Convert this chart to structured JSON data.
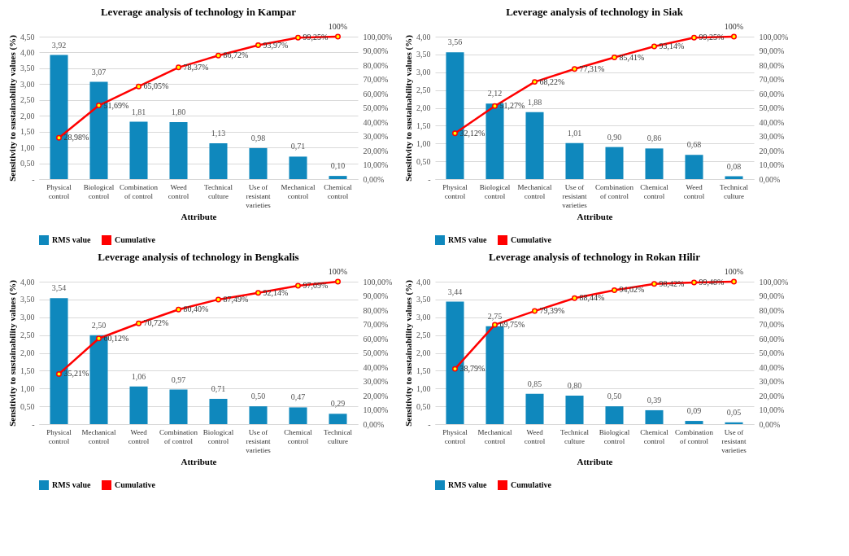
{
  "chart_data": [
    {
      "type": "bar",
      "title": "Leverage analysis of technology in Kampar",
      "xlabel": "Attribute",
      "ylabel": "Sensitivity to sustainability values (%)",
      "categories": [
        "Physical control",
        "Biological control",
        "Combination of control",
        "Weed control",
        "Technical culture",
        "Use of resistant varieties",
        "Mechanical control",
        "Chemical control"
      ],
      "series": [
        {
          "name": "RMS value",
          "color": "#0f88bd",
          "values": [
            3.92,
            3.07,
            1.81,
            1.8,
            1.13,
            0.98,
            0.71,
            0.1
          ],
          "value_labels": [
            "3,92",
            "3,07",
            "1,81",
            "1,80",
            "1,13",
            "0,98",
            "0,71",
            "0,10"
          ]
        },
        {
          "name": "Cumulative",
          "type": "line",
          "axis": "y2",
          "color": "#ff0000",
          "values": [
            28.98,
            51.69,
            65.05,
            78.37,
            86.72,
            93.97,
            99.25,
            100
          ],
          "value_labels": [
            "28,98%",
            "51,69%",
            "65,05%",
            "78,37%",
            "86,72%",
            "93,97%",
            "99,25%",
            "100%"
          ]
        }
      ],
      "ylim": [
        0,
        4.5
      ],
      "yticks": [
        {
          "value": 0,
          "label": "-"
        },
        {
          "value": 0.5,
          "label": "0,50"
        },
        {
          "value": 1,
          "label": "1,00"
        },
        {
          "value": 1.5,
          "label": "1,50"
        },
        {
          "value": 2,
          "label": "2,00"
        },
        {
          "value": 2.5,
          "label": "2,50"
        },
        {
          "value": 3,
          "label": "3,00"
        },
        {
          "value": 3.5,
          "label": "3,50"
        },
        {
          "value": 4,
          "label": "4,00"
        },
        {
          "value": 4.5,
          "label": "4,50"
        }
      ],
      "y2lim": [
        0,
        100
      ],
      "y2ticks": [
        {
          "value": 0,
          "label": "0,00%"
        },
        {
          "value": 10,
          "label": "10,00%"
        },
        {
          "value": 20,
          "label": "20,00%"
        },
        {
          "value": 30,
          "label": "30,00%"
        },
        {
          "value": 40,
          "label": "40,00%"
        },
        {
          "value": 50,
          "label": "50,00%"
        },
        {
          "value": 60,
          "label": "60,00%"
        },
        {
          "value": 70,
          "label": "70,00%"
        },
        {
          "value": 80,
          "label": "80,00%"
        },
        {
          "value": 90,
          "label": "90,00%"
        },
        {
          "value": 100,
          "label": "100,00%"
        }
      ],
      "grid": "y",
      "legend": "bottom",
      "marker": "circle"
    },
    {
      "type": "bar",
      "title": "Leverage analysis of technology in Siak",
      "xlabel": "Attribute",
      "ylabel": "Sensitivity to sustainability values (%)",
      "categories": [
        "Physical control",
        "Biological control",
        "Mechanical control",
        "Use of resistant varieties",
        "Combination of control",
        "Chemical control",
        "Weed control",
        "Technical culture"
      ],
      "series": [
        {
          "name": "RMS value",
          "color": "#0f88bd",
          "values": [
            3.56,
            2.12,
            1.88,
            1.01,
            0.9,
            0.86,
            0.68,
            0.08
          ],
          "value_labels": [
            "3,56",
            "2,12",
            "1,88",
            "1,01",
            "0,90",
            "0,86",
            "0,68",
            "0,08"
          ]
        },
        {
          "name": "Cumulative",
          "type": "line",
          "axis": "y2",
          "color": "#ff0000",
          "values": [
            32.12,
            51.27,
            68.22,
            77.31,
            85.41,
            93.14,
            99.25,
            100
          ],
          "value_labels": [
            "32,12%",
            "51,27%",
            "68,22%",
            "77,31%",
            "85,41%",
            "93,14%",
            "99,25%",
            "100%"
          ]
        }
      ],
      "ylim": [
        0,
        4
      ],
      "yticks": [
        {
          "value": 0,
          "label": "-"
        },
        {
          "value": 0.5,
          "label": "0,50"
        },
        {
          "value": 1,
          "label": "1,00"
        },
        {
          "value": 1.5,
          "label": "1,50"
        },
        {
          "value": 2,
          "label": "2,00"
        },
        {
          "value": 2.5,
          "label": "2,50"
        },
        {
          "value": 3,
          "label": "3,00"
        },
        {
          "value": 3.5,
          "label": "3,50"
        },
        {
          "value": 4,
          "label": "4,00"
        }
      ],
      "y2lim": [
        0,
        100
      ],
      "y2ticks": [
        {
          "value": 0,
          "label": "0,00%"
        },
        {
          "value": 10,
          "label": "10,00%"
        },
        {
          "value": 20,
          "label": "20,00%"
        },
        {
          "value": 30,
          "label": "30,00%"
        },
        {
          "value": 40,
          "label": "40,00%"
        },
        {
          "value": 50,
          "label": "50,00%"
        },
        {
          "value": 60,
          "label": "60,00%"
        },
        {
          "value": 70,
          "label": "70,00%"
        },
        {
          "value": 80,
          "label": "80,00%"
        },
        {
          "value": 90,
          "label": "90,00%"
        },
        {
          "value": 100,
          "label": "100,00%"
        }
      ],
      "grid": "y",
      "legend": "bottom",
      "marker": "circle"
    },
    {
      "type": "bar",
      "title": "Leverage analysis of technology in Bengkalis",
      "xlabel": "Attribute",
      "ylabel": "Sensitivity to sustainability values (%)",
      "categories": [
        "Physical control",
        "Mechanical control",
        "Weed control",
        "Combination of control",
        "Biological control",
        "Use of resistant varieties",
        "Chemical control",
        "Technical culture"
      ],
      "series": [
        {
          "name": "RMS value",
          "color": "#0f88bd",
          "values": [
            3.54,
            2.5,
            1.06,
            0.97,
            0.71,
            0.5,
            0.47,
            0.29
          ],
          "value_labels": [
            "3,54",
            "2,50",
            "1,06",
            "0,97",
            "0,71",
            "0,50",
            "0,47",
            "0,29"
          ]
        },
        {
          "name": "Cumulative",
          "type": "line",
          "axis": "y2",
          "color": "#ff0000",
          "values": [
            35.21,
            60.12,
            70.72,
            80.4,
            87.49,
            92.14,
            97.09,
            100
          ],
          "value_labels": [
            "35,21%",
            "60,12%",
            "70,72%",
            "80,40%",
            "87,49%",
            "92,14%",
            "97,09%",
            "100%"
          ]
        }
      ],
      "ylim": [
        0,
        4
      ],
      "yticks": [
        {
          "value": 0,
          "label": "-"
        },
        {
          "value": 0.5,
          "label": "0,50"
        },
        {
          "value": 1,
          "label": "1,00"
        },
        {
          "value": 1.5,
          "label": "1,50"
        },
        {
          "value": 2,
          "label": "2,00"
        },
        {
          "value": 2.5,
          "label": "2,50"
        },
        {
          "value": 3,
          "label": "3,00"
        },
        {
          "value": 3.5,
          "label": "3,50"
        },
        {
          "value": 4,
          "label": "4,00"
        }
      ],
      "y2lim": [
        0,
        100
      ],
      "y2ticks": [
        {
          "value": 0,
          "label": "0,00%"
        },
        {
          "value": 10,
          "label": "10,00%"
        },
        {
          "value": 20,
          "label": "20,00%"
        },
        {
          "value": 30,
          "label": "30,00%"
        },
        {
          "value": 40,
          "label": "40,00%"
        },
        {
          "value": 50,
          "label": "50,00%"
        },
        {
          "value": 60,
          "label": "60,00%"
        },
        {
          "value": 70,
          "label": "70,00%"
        },
        {
          "value": 80,
          "label": "80,00%"
        },
        {
          "value": 90,
          "label": "90,00%"
        },
        {
          "value": 100,
          "label": "100,00%"
        }
      ],
      "grid": "y",
      "legend": "bottom",
      "marker": "circle"
    },
    {
      "type": "bar",
      "title": "Leverage analysis of technology in  Rokan Hilir",
      "xlabel": "Attribute",
      "ylabel": "Sensitivity to sustainability values (%)",
      "categories": [
        "Physical control",
        "Mechanical control",
        "Weed control",
        "Technical culture",
        "Biological control",
        "Chemical control",
        "Combination of control",
        "Use of resistant varieties"
      ],
      "series": [
        {
          "name": "RMS value",
          "color": "#0f88bd",
          "values": [
            3.44,
            2.75,
            0.85,
            0.8,
            0.5,
            0.39,
            0.09,
            0.05
          ],
          "value_labels": [
            "3,44",
            "2,75",
            "0,85",
            "0,80",
            "0,50",
            "0,39",
            "0,09",
            "0,05"
          ]
        },
        {
          "name": "Cumulative",
          "type": "line",
          "axis": "y2",
          "color": "#ff0000",
          "values": [
            38.79,
            69.75,
            79.39,
            88.44,
            94.02,
            98.42,
            99.48,
            100
          ],
          "value_labels": [
            "38,79%",
            "69,75%",
            "79,39%",
            "88,44%",
            "94,02%",
            "98,42%",
            "99,48%",
            "100%"
          ]
        }
      ],
      "ylim": [
        0,
        4
      ],
      "yticks": [
        {
          "value": 0,
          "label": "-"
        },
        {
          "value": 0.5,
          "label": "0,50"
        },
        {
          "value": 1,
          "label": "1,00"
        },
        {
          "value": 1.5,
          "label": "1,50"
        },
        {
          "value": 2,
          "label": "2,00"
        },
        {
          "value": 2.5,
          "label": "2,50"
        },
        {
          "value": 3,
          "label": "3,00"
        },
        {
          "value": 3.5,
          "label": "3,50"
        },
        {
          "value": 4,
          "label": "4,00"
        }
      ],
      "y2lim": [
        0,
        100
      ],
      "y2ticks": [
        {
          "value": 0,
          "label": "0,00%"
        },
        {
          "value": 10,
          "label": "10,00%"
        },
        {
          "value": 20,
          "label": "20,00%"
        },
        {
          "value": 30,
          "label": "30,00%"
        },
        {
          "value": 40,
          "label": "40,00%"
        },
        {
          "value": 50,
          "label": "50,00%"
        },
        {
          "value": 60,
          "label": "60,00%"
        },
        {
          "value": 70,
          "label": "70,00%"
        },
        {
          "value": 80,
          "label": "80,00%"
        },
        {
          "value": 90,
          "label": "90,00%"
        },
        {
          "value": 100,
          "label": "100,00%"
        }
      ],
      "grid": "y",
      "legend": "bottom",
      "marker": "circle"
    }
  ]
}
